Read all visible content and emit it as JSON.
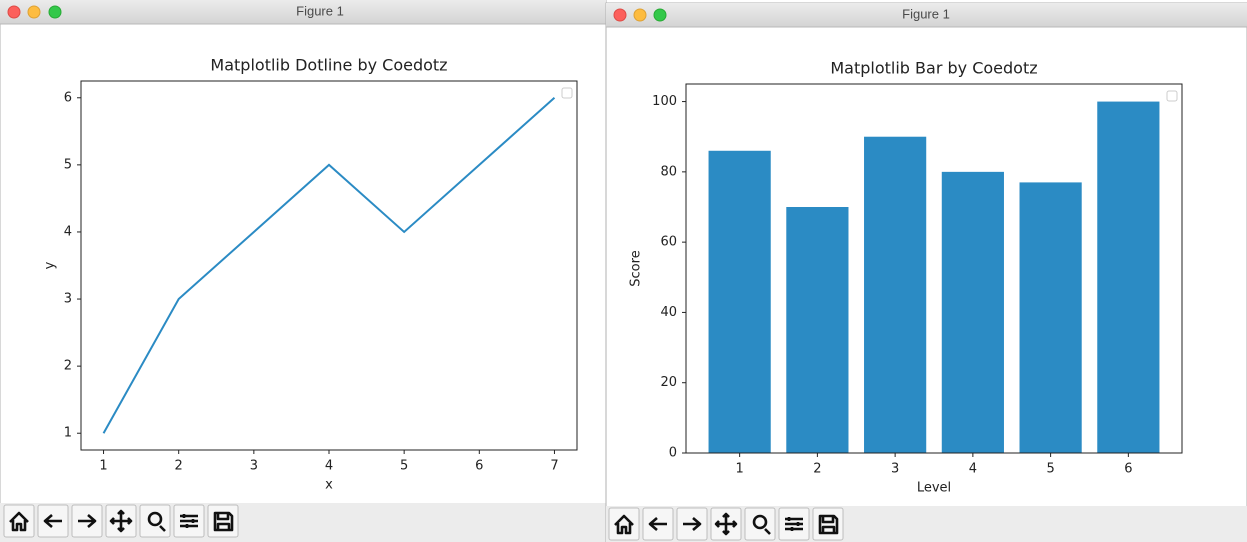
{
  "windows": [
    {
      "title": "Figure 1"
    },
    {
      "title": "Figure 1"
    }
  ],
  "chart_data": [
    {
      "type": "line",
      "title": "Matplotlib Dotline by Coedotz",
      "x_label": "x",
      "y_label": "y",
      "x": [
        1,
        2,
        3,
        4,
        5,
        6,
        7
      ],
      "values": [
        1,
        3,
        4,
        5,
        4,
        5,
        6
      ],
      "color": "#2b8bc4",
      "xlim": [
        0.7,
        7.3
      ],
      "ylim": [
        0.75,
        6.25
      ],
      "xticks": [
        1,
        2,
        3,
        4,
        5,
        6,
        7
      ],
      "yticks": [
        1,
        2,
        3,
        4,
        5,
        6
      ],
      "legend": "upper right"
    },
    {
      "type": "bar",
      "title": "Matplotlib Bar by Coedotz",
      "x_label": "Level",
      "y_label": "Score",
      "x": [
        1,
        2,
        3,
        4,
        5,
        6
      ],
      "values": [
        86,
        70,
        90,
        80,
        77,
        100
      ],
      "color": "#2b8bc4",
      "xlim": [
        0.31,
        6.69
      ],
      "ylim": [
        0,
        105
      ],
      "xticks": [
        1,
        2,
        3,
        4,
        5,
        6
      ],
      "yticks": [
        0,
        20,
        40,
        60,
        80,
        100
      ],
      "legend": "upper right"
    }
  ]
}
